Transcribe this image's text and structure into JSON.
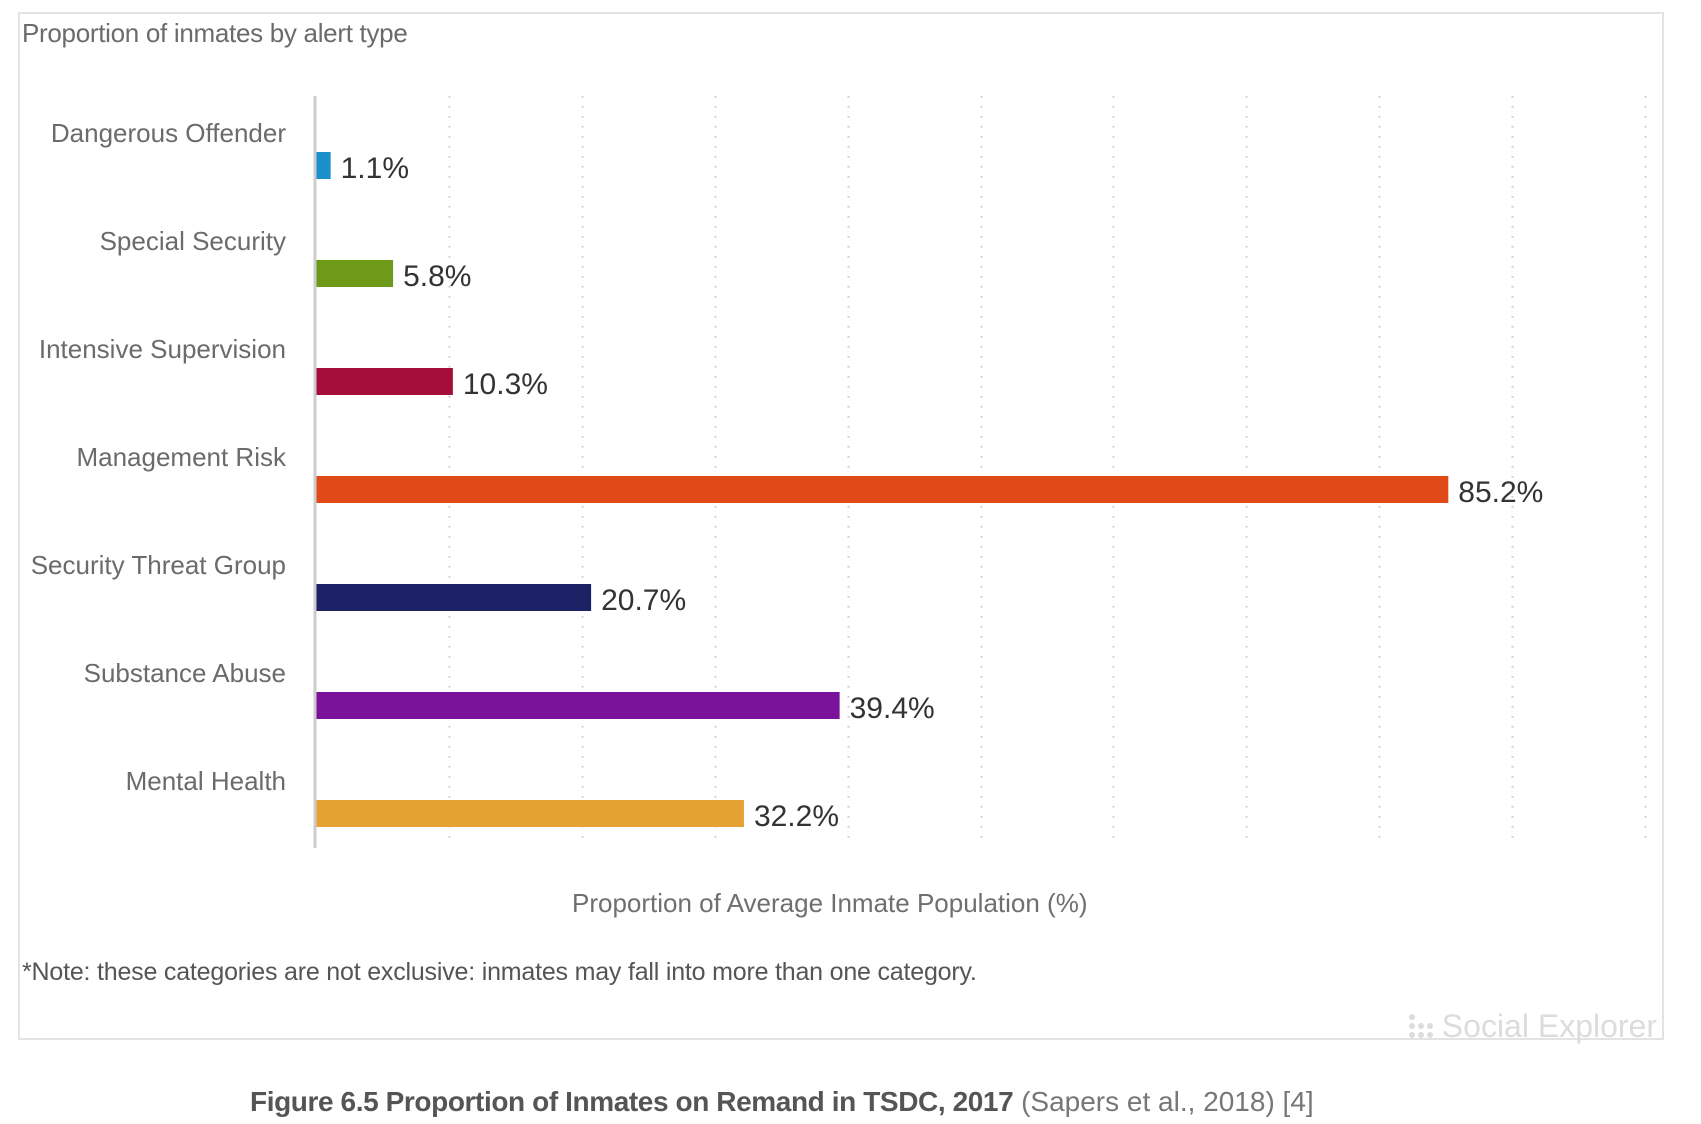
{
  "chart_data": {
    "type": "bar",
    "orientation": "horizontal",
    "title": "Proportion of inmates by alert type",
    "xlabel": "Proportion of Average Inmate Population (%)",
    "ylabel": "",
    "xlim": [
      0,
      100
    ],
    "grid": true,
    "grid_ticks": [
      10,
      20,
      30,
      40,
      50,
      60,
      70,
      80,
      90,
      100
    ],
    "categories": [
      "Dangerous Offender",
      "Special Security",
      "Intensive Supervision",
      "Management Risk",
      "Security Threat Group",
      "Substance Abuse",
      "Mental Health"
    ],
    "values": [
      1.1,
      5.8,
      10.3,
      85.2,
      20.7,
      39.4,
      32.2
    ],
    "value_labels": [
      "1.1%",
      "5.8%",
      "10.3%",
      "85.2%",
      "20.7%",
      "39.4%",
      "32.2%"
    ],
    "colors": [
      "#1a8fc9",
      "#6e9a1a",
      "#a50d3a",
      "#e04a17",
      "#1c2166",
      "#7b129c",
      "#e5a132"
    ],
    "note": "*Note: these categories are not exclusive: inmates may fall into more than one category."
  },
  "branding": {
    "watermark": "Social Explorer",
    "watermark_icon": "dot-grid-icon"
  },
  "caption": {
    "figure": "Figure 6.5 Proportion of Inmates on Remand in TSDC, 2017",
    "source": "(Sapers et al., 2018) [4]"
  }
}
